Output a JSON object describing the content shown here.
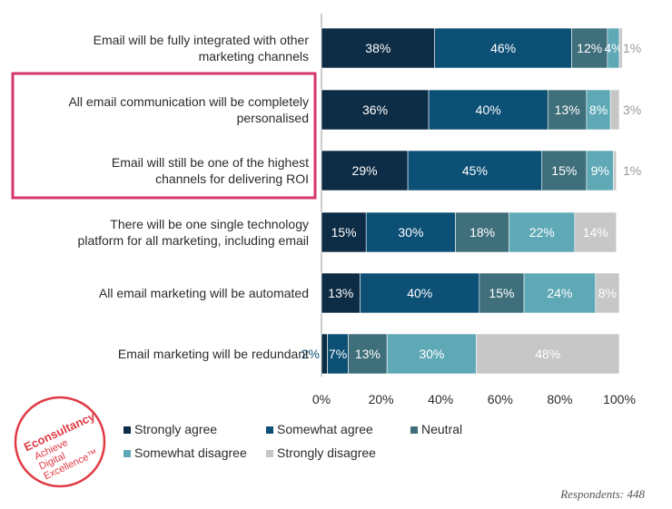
{
  "chart_data": {
    "type": "bar",
    "orientation": "horizontal",
    "stacked": true,
    "categories": [
      [
        "Email will be fully integrated with other",
        "marketing channels"
      ],
      [
        "All email communication will be completely",
        "personalised"
      ],
      [
        "Email will still be one of the highest",
        "channels for delivering ROI"
      ],
      [
        "There will be one single technology",
        "platform for all marketing, including email"
      ],
      [
        "All email marketing will be automated"
      ],
      [
        "Email marketing will be redundant"
      ]
    ],
    "series": [
      {
        "name": "Strongly agree",
        "color": "#0d2c45",
        "label_color": "#ffffff",
        "values": [
          38,
          36,
          29,
          15,
          13,
          2
        ],
        "labels": [
          "38%",
          "36%",
          "29%",
          "15%",
          "13%",
          "2%"
        ]
      },
      {
        "name": "Somewhat agree",
        "color": "#0d5076",
        "label_color": "#ffffff",
        "values": [
          46,
          40,
          45,
          30,
          40,
          7
        ],
        "labels": [
          "46%",
          "40%",
          "45%",
          "30%",
          "40%",
          "7%"
        ]
      },
      {
        "name": "Neutral",
        "color": "#3f6f7a",
        "label_color": "#ffffff",
        "values": [
          12,
          13,
          15,
          18,
          15,
          13
        ],
        "labels": [
          "12%",
          "13%",
          "15%",
          "18%",
          "15%",
          "13%"
        ]
      },
      {
        "name": "Somewhat disagree",
        "color": "#5fa9b6",
        "label_color": "#ffffff",
        "values": [
          4,
          8,
          9,
          22,
          24,
          30
        ],
        "labels": [
          "4%",
          "8%",
          "9%",
          "22%",
          "24%",
          "30%"
        ]
      },
      {
        "name": "Strongly disagree",
        "color": "#c7c7c7",
        "label_color": "#ffffff",
        "values": [
          1,
          3,
          1,
          14,
          8,
          48
        ],
        "labels": [
          "1%",
          "3%",
          "1%",
          "14%",
          "8%",
          "48%"
        ]
      }
    ],
    "xlim": [
      0,
      100
    ],
    "xticks": [
      "0%",
      "20%",
      "40%",
      "60%",
      "80%",
      "100%"
    ],
    "highlight_color": "#d6366b",
    "highlighted_categories": [
      1,
      2
    ],
    "legend_position": "bottom"
  },
  "footer": {
    "respondents": "Respondents: 448"
  },
  "logo": {
    "lines": [
      "Econsultancy",
      "Achieve",
      "Digital",
      "Excellence™"
    ],
    "color": "#e03a44"
  }
}
